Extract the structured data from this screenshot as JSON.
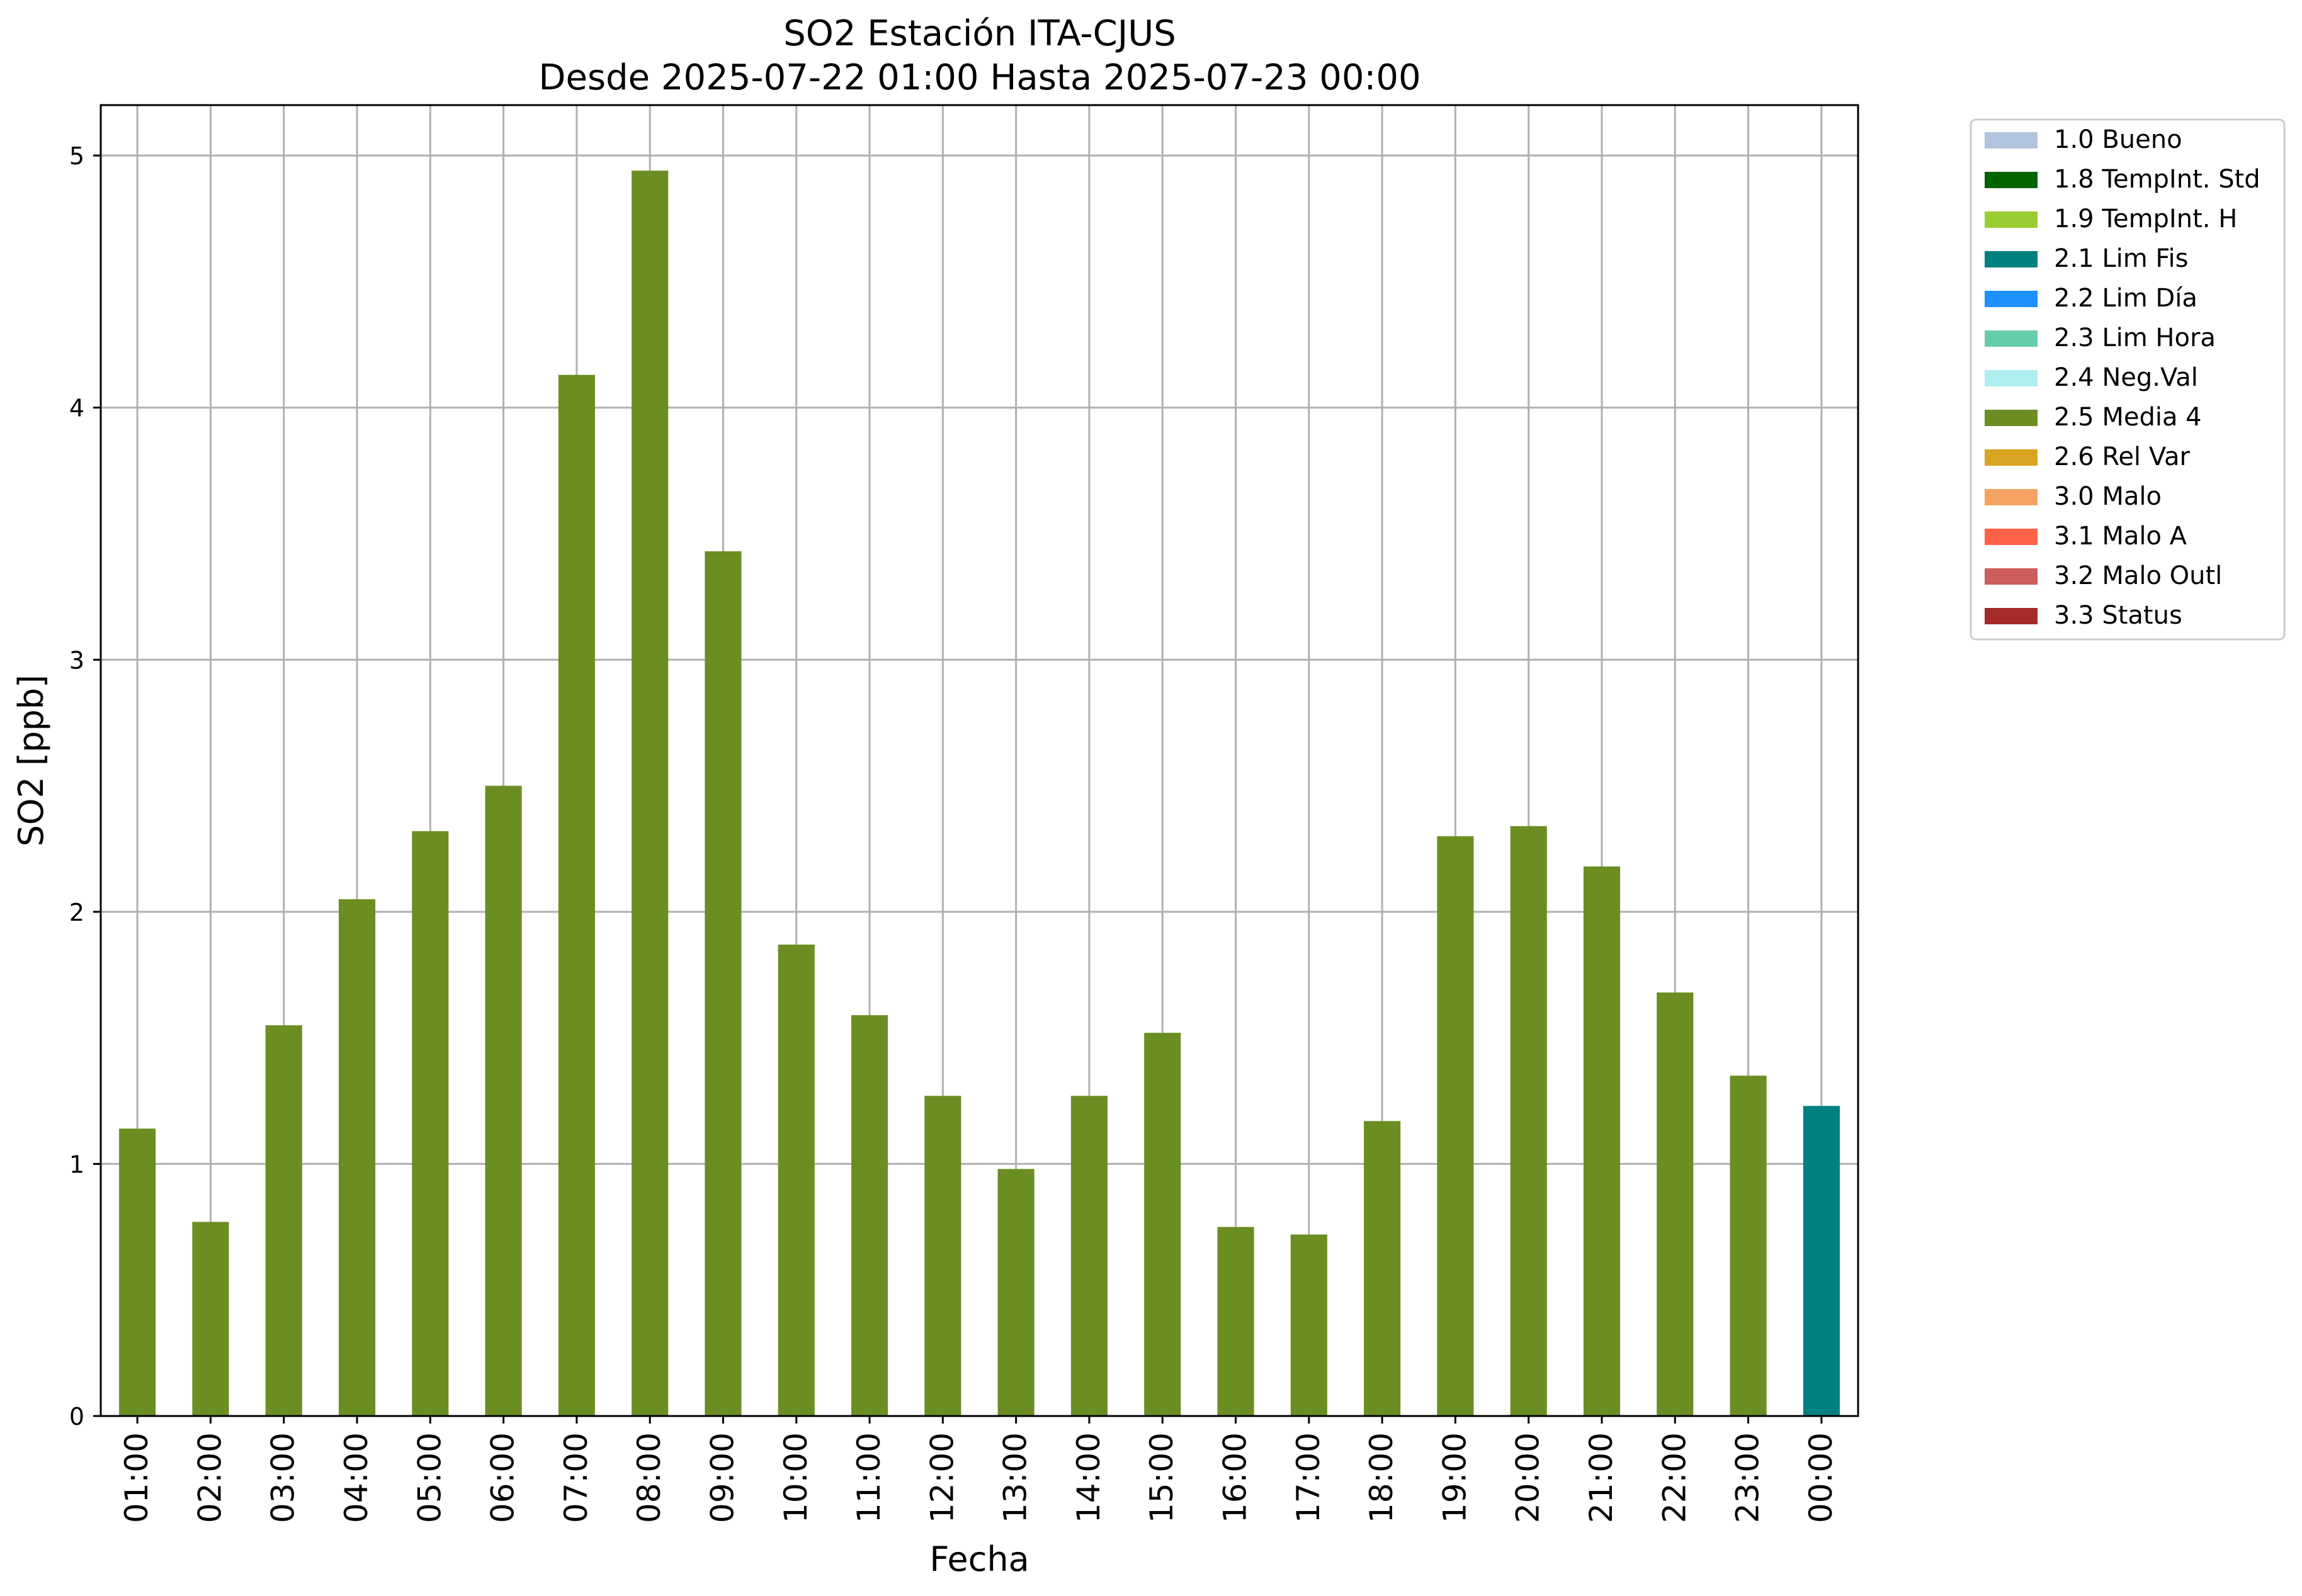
{
  "chart_data": {
    "type": "bar",
    "title": "SO2 Estación ITA-CJUS",
    "subtitle": "Desde 2025-07-22 01:00 Hasta 2025-07-23 00:00",
    "xlabel": "Fecha",
    "ylabel": "SO2 [ppb]",
    "ylim": [
      0,
      5.2
    ],
    "yticks": [
      0,
      1,
      2,
      3,
      4,
      5
    ],
    "grid": true,
    "legend_position": "outside-top-right",
    "categories": [
      "01:00",
      "02:00",
      "03:00",
      "04:00",
      "05:00",
      "06:00",
      "07:00",
      "08:00",
      "09:00",
      "10:00",
      "11:00",
      "12:00",
      "13:00",
      "14:00",
      "15:00",
      "16:00",
      "17:00",
      "18:00",
      "19:00",
      "20:00",
      "21:00",
      "22:00",
      "23:00",
      "00:00"
    ],
    "values": [
      1.14,
      0.77,
      1.55,
      2.05,
      2.32,
      2.5,
      4.13,
      4.94,
      3.43,
      1.87,
      1.59,
      1.27,
      0.98,
      1.27,
      1.52,
      0.75,
      0.72,
      1.17,
      2.3,
      2.34,
      2.18,
      1.68,
      1.35,
      1.23
    ],
    "flags": [
      "2.5",
      "2.5",
      "2.5",
      "2.5",
      "2.5",
      "2.5",
      "2.5",
      "2.5",
      "2.5",
      "2.5",
      "2.5",
      "2.5",
      "2.5",
      "2.5",
      "2.5",
      "2.5",
      "2.5",
      "2.5",
      "2.5",
      "2.5",
      "2.5",
      "2.5",
      "2.5",
      "2.1"
    ],
    "legend": [
      {
        "code": "1.0",
        "label": "1.0 Bueno",
        "color": "#b0c4de"
      },
      {
        "code": "1.8",
        "label": "1.8 TempInt. Std",
        "color": "#006400"
      },
      {
        "code": "1.9",
        "label": "1.9 TempInt. H",
        "color": "#9acd32"
      },
      {
        "code": "2.1",
        "label": "2.1 Lim Fis",
        "color": "#008080"
      },
      {
        "code": "2.2",
        "label": "2.2 Lim Día",
        "color": "#1e90ff"
      },
      {
        "code": "2.3",
        "label": "2.3 Lim Hora",
        "color": "#66cdaa"
      },
      {
        "code": "2.4",
        "label": "2.4 Neg.Val",
        "color": "#afeeee"
      },
      {
        "code": "2.5",
        "label": "2.5 Media 4",
        "color": "#6b8e23"
      },
      {
        "code": "2.6",
        "label": "2.6 Rel Var",
        "color": "#daa520"
      },
      {
        "code": "3.0",
        "label": "3.0 Malo",
        "color": "#f4a460"
      },
      {
        "code": "3.1",
        "label": "3.1 Malo A",
        "color": "#ff6347"
      },
      {
        "code": "3.2",
        "label": "3.2 Malo Outl",
        "color": "#cd5c5c"
      },
      {
        "code": "3.3",
        "label": "3.3 Status",
        "color": "#a52a2a"
      }
    ]
  }
}
